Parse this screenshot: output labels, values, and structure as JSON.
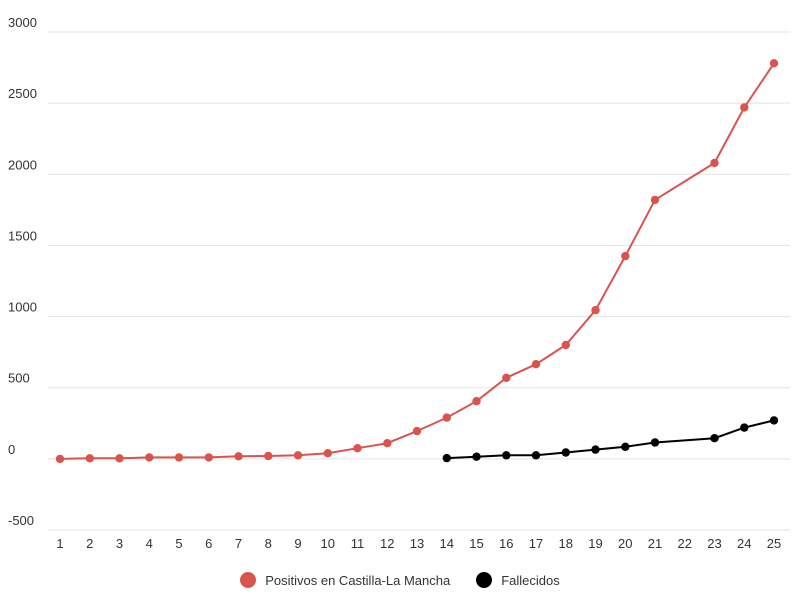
{
  "chart_data": {
    "type": "line",
    "x": [
      "1",
      "2",
      "3",
      "4",
      "5",
      "6",
      "7",
      "8",
      "9",
      "10",
      "11",
      "12",
      "13",
      "14",
      "15",
      "16",
      "17",
      "18",
      "19",
      "20",
      "21",
      "22",
      "23",
      "24",
      "25"
    ],
    "ylim": [
      -500,
      3000
    ],
    "yticks": [
      -500,
      0,
      500,
      1000,
      1500,
      2000,
      2500,
      3000
    ],
    "grid": true,
    "legend_position": "bottom",
    "series": [
      {
        "name": "Positivos en Castilla-La Mancha",
        "color": "#d9534f",
        "points": [
          {
            "x": "1",
            "y": 0
          },
          {
            "x": "2",
            "y": 4
          },
          {
            "x": "3",
            "y": 4
          },
          {
            "x": "4",
            "y": 10
          },
          {
            "x": "5",
            "y": 10
          },
          {
            "x": "6",
            "y": 10
          },
          {
            "x": "7",
            "y": 18
          },
          {
            "x": "8",
            "y": 20
          },
          {
            "x": "9",
            "y": 25
          },
          {
            "x": "10",
            "y": 40
          },
          {
            "x": "11",
            "y": 75
          },
          {
            "x": "12",
            "y": 110
          },
          {
            "x": "13",
            "y": 195
          },
          {
            "x": "14",
            "y": 290
          },
          {
            "x": "15",
            "y": 405
          },
          {
            "x": "16",
            "y": 570
          },
          {
            "x": "17",
            "y": 665
          },
          {
            "x": "18",
            "y": 800
          },
          {
            "x": "19",
            "y": 1045
          },
          {
            "x": "20",
            "y": 1425
          },
          {
            "x": "21",
            "y": 1820
          },
          {
            "x": "23",
            "y": 2080
          },
          {
            "x": "24",
            "y": 2470
          },
          {
            "x": "25",
            "y": 2780
          }
        ]
      },
      {
        "name": "Fallecidos",
        "color": "#000000",
        "points": [
          {
            "x": "14",
            "y": 5
          },
          {
            "x": "15",
            "y": 15
          },
          {
            "x": "16",
            "y": 25
          },
          {
            "x": "17",
            "y": 25
          },
          {
            "x": "18",
            "y": 45
          },
          {
            "x": "19",
            "y": 65
          },
          {
            "x": "20",
            "y": 85
          },
          {
            "x": "21",
            "y": 115
          },
          {
            "x": "23",
            "y": 145
          },
          {
            "x": "24",
            "y": 220
          },
          {
            "x": "25",
            "y": 270
          }
        ]
      }
    ]
  }
}
